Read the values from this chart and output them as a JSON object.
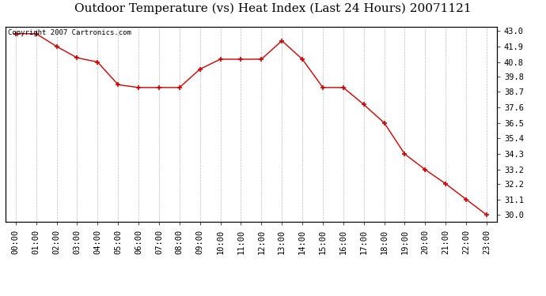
{
  "title": "Outdoor Temperature (vs) Heat Index (Last 24 Hours) 20071121",
  "copyright_text": "Copyright 2007 Cartronics.com",
  "x_labels": [
    "00:00",
    "01:00",
    "02:00",
    "03:00",
    "04:00",
    "05:00",
    "06:00",
    "07:00",
    "08:00",
    "09:00",
    "10:00",
    "11:00",
    "12:00",
    "13:00",
    "14:00",
    "15:00",
    "16:00",
    "17:00",
    "18:00",
    "19:00",
    "20:00",
    "21:00",
    "22:00",
    "23:00"
  ],
  "y_values": [
    42.8,
    42.8,
    41.9,
    41.1,
    40.8,
    39.2,
    39.0,
    39.0,
    39.0,
    40.3,
    41.0,
    41.0,
    41.0,
    42.3,
    41.0,
    39.0,
    39.0,
    37.8,
    36.5,
    34.3,
    33.2,
    32.2,
    31.1,
    30.0
  ],
  "line_color": "#cc0000",
  "marker": "+",
  "marker_size": 5,
  "marker_color": "#cc0000",
  "background_color": "#ffffff",
  "plot_bg_color": "#ffffff",
  "grid_color": "#bbbbbb",
  "ylim_min": 29.5,
  "ylim_max": 43.3,
  "y_ticks": [
    30.0,
    31.1,
    32.2,
    33.2,
    34.3,
    35.4,
    36.5,
    37.6,
    38.7,
    39.8,
    40.8,
    41.9,
    43.0
  ],
  "title_fontsize": 11,
  "tick_fontsize": 7.5,
  "copyright_fontsize": 6.5
}
